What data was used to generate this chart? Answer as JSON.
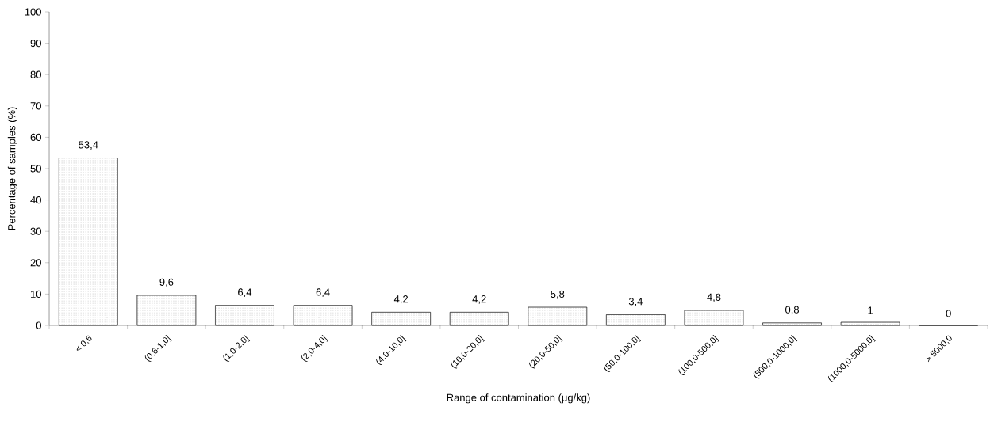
{
  "chart_data": {
    "type": "bar",
    "xlabel": "Range of contamination (μg/kg)",
    "ylabel": "Percentage of samples (%)",
    "categories": [
      "< 0,6",
      "(0,6-1,0]",
      "(1,0-2,0]",
      "(2,0-4,0]",
      "(4,0-10,0]",
      "(10,0-20,0]",
      "(20,0-50,0]",
      "(50,0-100,0]",
      "(100,0-500,0]",
      "(500,0-1000,0]",
      "(1000,0-5000,0]",
      "> 5000,0"
    ],
    "values": [
      53.4,
      9.6,
      6.4,
      6.4,
      4.2,
      4.2,
      5.8,
      3.4,
      4.8,
      0.8,
      1,
      0
    ],
    "value_labels": [
      "53,4",
      "9,6",
      "6,4",
      "6,4",
      "4,2",
      "4,2",
      "5,8",
      "3,4",
      "4,8",
      "0,8",
      "1",
      "0"
    ],
    "color": "#ffffff",
    "ylim": [
      0,
      100
    ],
    "yticks": [
      0,
      10,
      20,
      30,
      40,
      50,
      60,
      70,
      80,
      90,
      100
    ]
  }
}
